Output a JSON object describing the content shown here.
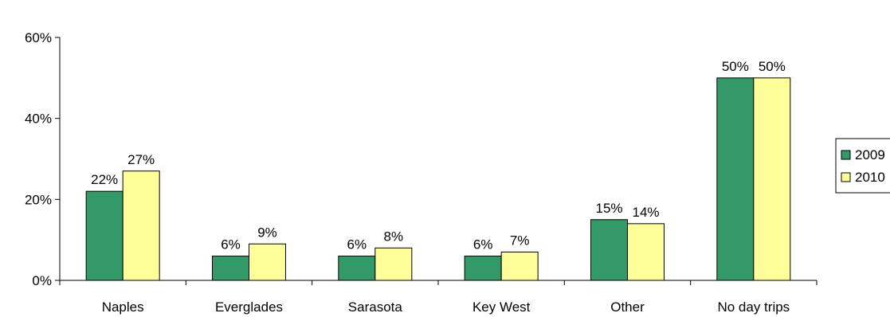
{
  "chart_data": {
    "type": "bar",
    "categories": [
      "Naples",
      "Everglades",
      "Sarasota",
      "Key West",
      "Other",
      "No day trips"
    ],
    "series": [
      {
        "name": "2009",
        "values": [
          22,
          6,
          6,
          6,
          15,
          50
        ],
        "labels": [
          "22%",
          "6%",
          "6%",
          "6%",
          "15%",
          "50%"
        ],
        "color": "#339966"
      },
      {
        "name": "2010",
        "values": [
          27,
          9,
          8,
          7,
          14,
          50
        ],
        "labels": [
          "27%",
          "9%",
          "8%",
          "7%",
          "14%",
          "50%"
        ],
        "color": "#FFFF99"
      }
    ],
    "y_ticks": [
      {
        "value": 0,
        "label": "0%"
      },
      {
        "value": 20,
        "label": "20%"
      },
      {
        "value": 40,
        "label": "40%"
      },
      {
        "value": 60,
        "label": "60%"
      }
    ],
    "ylim": [
      0,
      60
    ],
    "title": "",
    "xlabel": "",
    "ylabel": "",
    "grid": false,
    "legend": {
      "position": "right",
      "entries": [
        "2009",
        "2010"
      ]
    },
    "bar_border_color": "#000000"
  }
}
